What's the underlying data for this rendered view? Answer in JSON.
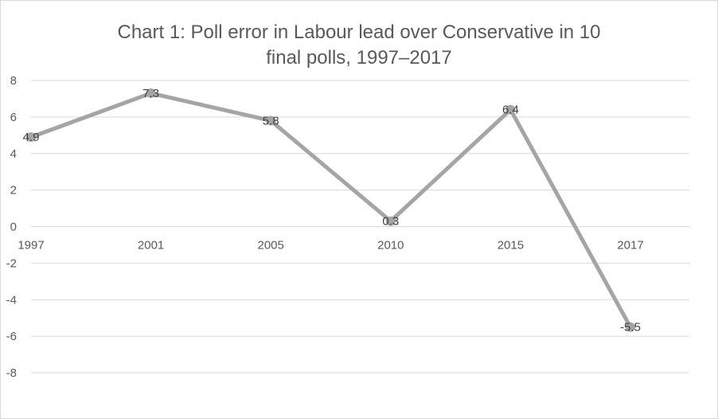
{
  "chart_data": {
    "type": "line",
    "title_line1": "Chart 1: Poll error in Labour lead over Conservative in 10",
    "title_line2": "final polls, 1997–2017",
    "categories": [
      "1997",
      "2001",
      "2005",
      "2010",
      "2015",
      "2017"
    ],
    "series": [
      {
        "values": [
          4.9,
          7.3,
          5.8,
          0.3,
          6.4,
          -5.5
        ],
        "labels": [
          "4.9",
          "7.3",
          "5.8",
          "0.3",
          "6.4",
          "-5.5"
        ],
        "color": "#a5a5a5"
      }
    ],
    "ylim": [
      -8,
      8
    ],
    "yticks": [
      8,
      6,
      4,
      2,
      0,
      -2,
      -4,
      -6,
      -8
    ],
    "grid": true,
    "legend": "none",
    "gridline_color": "#d9d9d9",
    "text_color": "#595959"
  }
}
